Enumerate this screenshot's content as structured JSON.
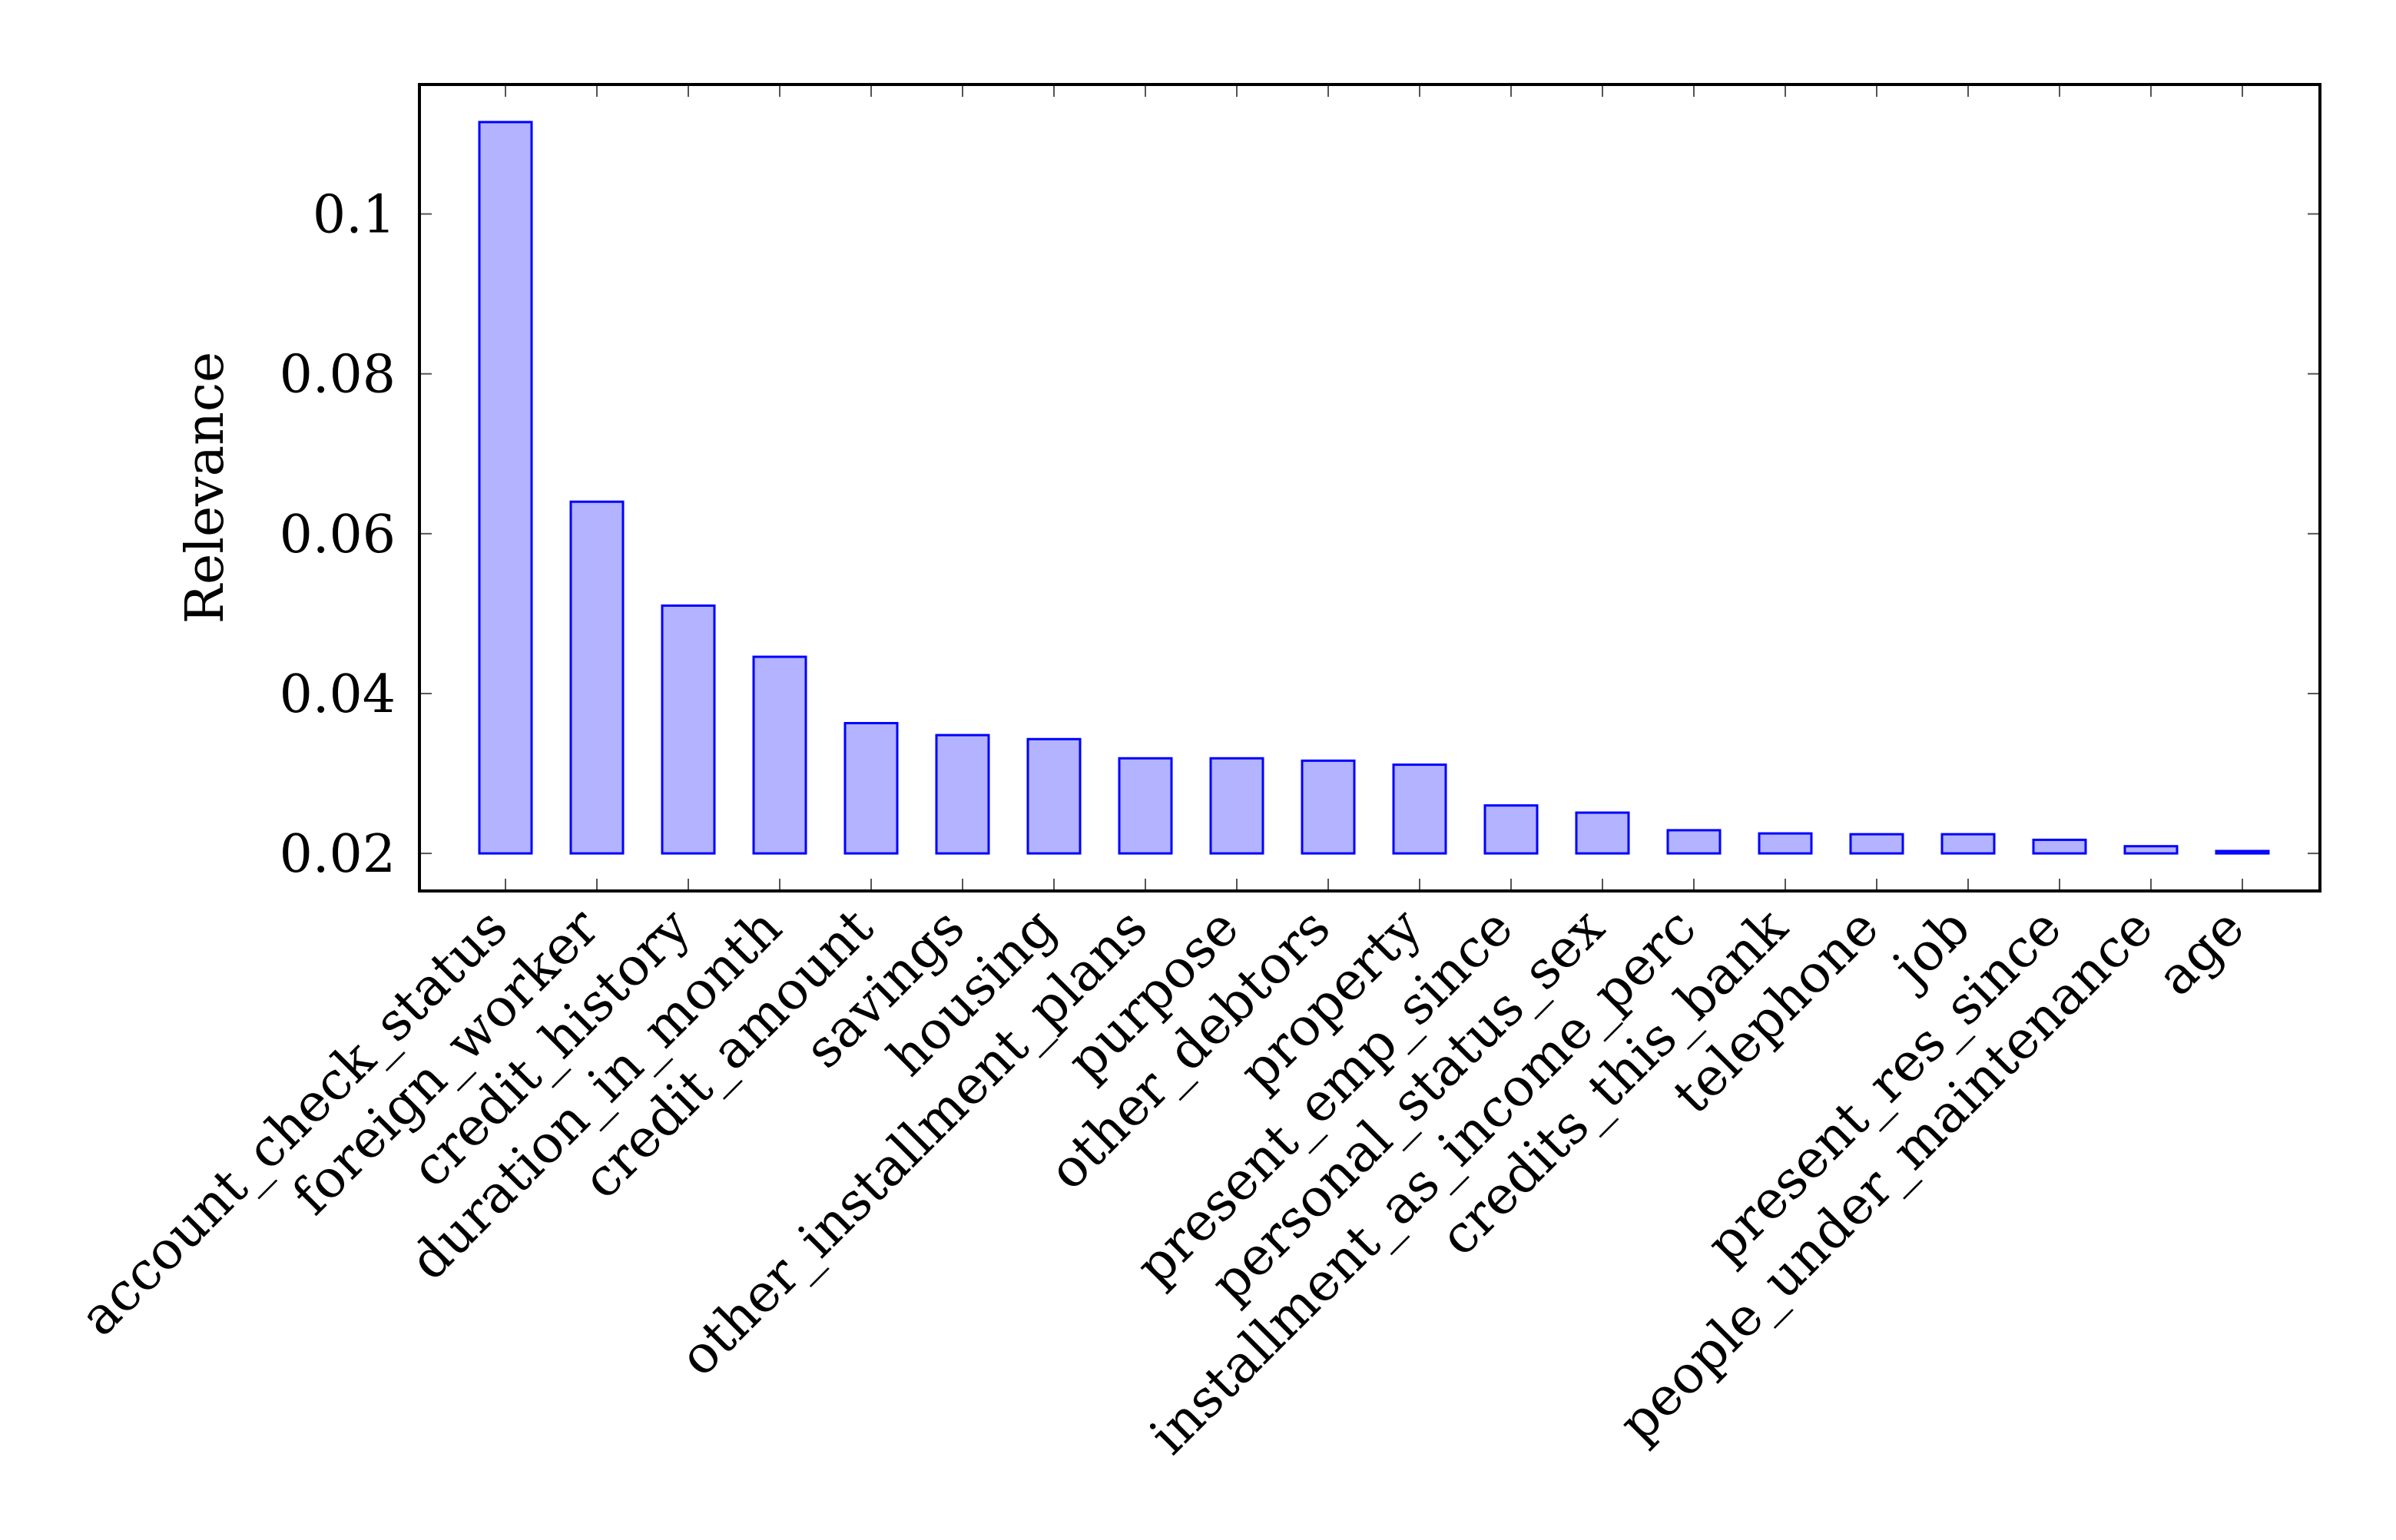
{
  "chart_data": {
    "type": "bar",
    "title": "",
    "xlabel": "",
    "ylabel": "Relevance",
    "ylim": [
      0.0153,
      0.1162
    ],
    "grid": false,
    "yticks": [
      0.02,
      0.04,
      0.06,
      0.08,
      0.1
    ],
    "ytick_labels": [
      "0.02",
      "0.04",
      "0.06",
      "0.08",
      "0.1"
    ],
    "bar_fill": "#b3b3ff",
    "bar_stroke": "#0000ff",
    "bar_base": 0.02,
    "categories": [
      "account_check_status",
      "foreign_worker",
      "credit_history",
      "duration_in_month",
      "credit_amount",
      "savings",
      "housing",
      "other_installment_plans",
      "purpose",
      "other_debtors",
      "property",
      "present_emp_since",
      "personal_status_sex",
      "installment_as_income_perc",
      "credits_this_bank",
      "telephone",
      "job",
      "present_res_since",
      "people_under_maintenance",
      "age"
    ],
    "values": [
      0.1115,
      0.064,
      0.051,
      0.0446,
      0.0363,
      0.0348,
      0.0343,
      0.0319,
      0.0319,
      0.0316,
      0.0311,
      0.026,
      0.0251,
      0.0229,
      0.0225,
      0.0224,
      0.0224,
      0.0217,
      0.0209,
      0.0203
    ]
  }
}
